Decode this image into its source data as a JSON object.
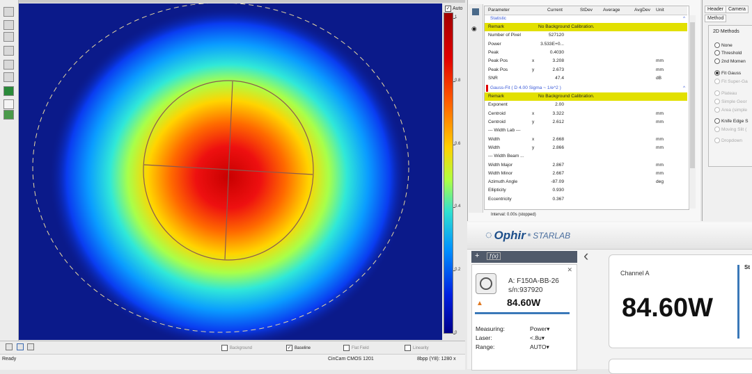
{
  "viewer": {
    "auto_label": "Auto",
    "colorbar_ticks": [
      {
        "label": "1",
        "value": 1.0
      },
      {
        "label": "0.8",
        "value": 0.8
      },
      {
        "label": "0.6",
        "value": 0.6
      },
      {
        "label": "0.4",
        "value": 0.4
      },
      {
        "label": "0.2",
        "value": 0.2
      },
      {
        "label": "0",
        "value": 0.0
      }
    ],
    "bottom_options": [
      {
        "label": "Background",
        "checked": false
      },
      {
        "label": "Baseline",
        "checked": true
      },
      {
        "label": "Flat Field",
        "checked": false
      },
      {
        "label": "Linearity",
        "checked": false
      }
    ]
  },
  "status_bar": {
    "ready": "Ready",
    "camera": "CinCam CMOS 1201",
    "bpp": "8bpp (Y8): 1280 x"
  },
  "results_table": {
    "headers": [
      "Parameter",
      "Current",
      "StDev",
      "Average",
      "AvgDev",
      "Unit"
    ],
    "section_statistic": "Statistic",
    "statistic_rows": [
      {
        "p": "Remark",
        "a": "",
        "v": "No Background Calibration.",
        "u": "",
        "hl": true
      },
      {
        "p": "Number of Pixel",
        "a": "",
        "v": "527120",
        "u": ""
      },
      {
        "p": "Power",
        "a": "",
        "v": "3.533E+0...",
        "u": ""
      },
      {
        "p": "Peak",
        "a": "",
        "v": "0.4030",
        "u": ""
      },
      {
        "p": "Peak Pos",
        "a": "x",
        "v": "3.208",
        "u": "mm"
      },
      {
        "p": "Peak Pos",
        "a": "y",
        "v": "2.673",
        "u": "mm"
      },
      {
        "p": "SNR",
        "a": "",
        "v": "47.4",
        "u": "dB"
      }
    ],
    "section_gauss": "Gauss-Fit ( D 4.00 Sigma ~ 1/e^2 )",
    "gauss_rows": [
      {
        "p": "Remark",
        "a": "",
        "v": "No Background Calibration.",
        "u": "",
        "hl": true
      },
      {
        "p": "Exponent",
        "a": "",
        "v": "2.00",
        "u": ""
      },
      {
        "p": "Centroid",
        "a": "x",
        "v": "3.322",
        "u": "mm"
      },
      {
        "p": "Centroid",
        "a": "y",
        "v": "2.612",
        "u": "mm"
      },
      {
        "p": "--- Width Lab ---",
        "a": "",
        "v": "",
        "u": ""
      },
      {
        "p": "Width",
        "a": "x",
        "v": "2.668",
        "u": "mm"
      },
      {
        "p": "Width",
        "a": "y",
        "v": "2.866",
        "u": "mm"
      },
      {
        "p": "--- Width Beam ...",
        "a": "",
        "v": "",
        "u": ""
      },
      {
        "p": "Width Major",
        "a": "",
        "v": "2.867",
        "u": "mm"
      },
      {
        "p": "Width Minor",
        "a": "",
        "v": "2.667",
        "u": "mm"
      },
      {
        "p": "Azimuth Angle",
        "a": "",
        "v": "-87.09",
        "u": "deg"
      },
      {
        "p": "Ellipticity",
        "a": "",
        "v": "0.930",
        "u": ""
      },
      {
        "p": "Eccentricity",
        "a": "",
        "v": "0.367",
        "u": ""
      }
    ],
    "interval": "Interval: 0.00s (stopped)"
  },
  "method_panel": {
    "tabs": [
      "Header",
      "Camera",
      "Method"
    ],
    "group_title": "2D Methods",
    "options": [
      {
        "label": "None",
        "selected": false,
        "enabled": true
      },
      {
        "label": "Threshold",
        "selected": false,
        "enabled": true
      },
      {
        "label": "2nd Momen",
        "selected": false,
        "enabled": true
      },
      {
        "label": "Fit Gauss",
        "selected": true,
        "enabled": true
      },
      {
        "label": "Fit Super-Ga",
        "selected": false,
        "enabled": false
      },
      {
        "label": "Plateau",
        "selected": false,
        "enabled": false
      },
      {
        "label": "Simple Geor",
        "selected": false,
        "enabled": false
      },
      {
        "label": "Area (simple",
        "selected": false,
        "enabled": false
      },
      {
        "label": "Knife Edge S",
        "selected": false,
        "enabled": true
      },
      {
        "label": "Moving Slit (",
        "selected": false,
        "enabled": false
      },
      {
        "label": "Dropdown",
        "selected": false,
        "enabled": false
      }
    ]
  },
  "ophir": {
    "brand": "Ophir",
    "product": "STARLAB",
    "fx_label": "ƒ(x)",
    "device": {
      "name": "A: F150A-BB-26",
      "serial": "s/n:937920",
      "reading": "84.60W",
      "measuring_label": "Measuring:",
      "measuring_value": "Power",
      "laser_label": "Laser:",
      "laser_value": "<.8u",
      "range_label": "Range:",
      "range_value": "AUTO"
    },
    "channel_label": "Channel A",
    "channel_reading": "84.60W",
    "side_label": "St"
  },
  "colors": {
    "highlight": "#e2e000",
    "section_blue": "#3a5ad8",
    "ophir_blue": "#1c4e8a"
  }
}
